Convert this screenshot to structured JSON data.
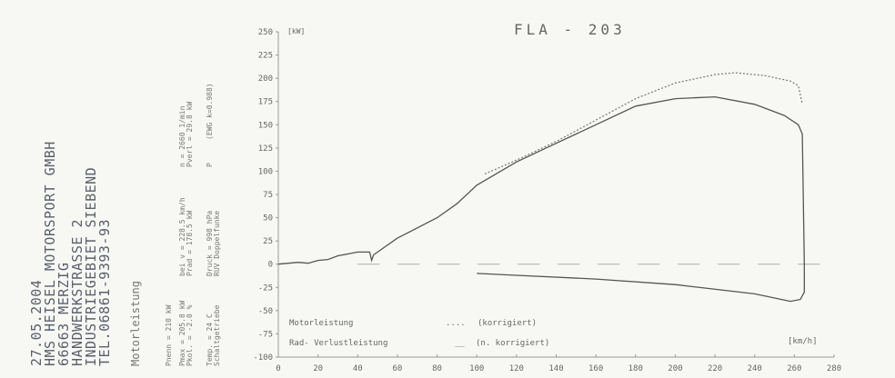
{
  "header": {
    "lines": [
      "27.05.2004",
      "HMS HEISEL MOTORSPORT GMBH",
      "66663 MERZIG",
      "HANDWERKSTRASSE 2",
      "INDUSTRIEGEBIET SIEBEND",
      "TEL.06861-9393-93"
    ],
    "section": "Motorleistung"
  },
  "params": {
    "pnenn": "Pnenn = 210 kW",
    "pmax": "Pmax = 205.8 kW",
    "pkol": "Pkol. = -2.0 %",
    "bei_v": "bei v = 228.5 km/h",
    "prad": "Prad = 178.5 kW",
    "n": "n = 2660 1/min",
    "pverl": "Pverl = 29.8 kW",
    "temp": "Temp. = 24 C",
    "getriebe": "Schaltgetriebe",
    "druck": "Druck = 998 hPa",
    "ruv": "RUV Doppelfunke",
    "p": "P",
    "ewg": "(EWG k=0.988)"
  },
  "chart_data": {
    "type": "line",
    "title": "FLA - 203",
    "ylabel": "[kW]",
    "xlabel": "[km/h]",
    "xlim": [
      0,
      280
    ],
    "ylim": [
      -100,
      250
    ],
    "xticks": [
      0,
      20,
      40,
      60,
      80,
      100,
      120,
      140,
      160,
      180,
      200,
      220,
      240,
      260,
      280
    ],
    "yticks": [
      250,
      225,
      200,
      175,
      150,
      125,
      100,
      75,
      50,
      25,
      0,
      -25,
      -50,
      -75,
      -100
    ],
    "grid": false,
    "legend": {
      "placement": "bottom-left",
      "entries": [
        {
          "label": "Motorleistung",
          "marker": "....",
          "note": "(korrigiert)"
        },
        {
          "label": "Rad- Verlustleistung",
          "marker": "__",
          "note": "(n. korrigiert)"
        }
      ]
    },
    "series": [
      {
        "name": "Motorleistung",
        "style": "dotted",
        "x": [
          104,
          120,
          140,
          160,
          180,
          200,
          220,
          230,
          245,
          258,
          262,
          264
        ],
        "y": [
          97,
          112,
          132,
          155,
          178,
          195,
          204,
          206,
          203,
          197,
          192,
          172
        ]
      },
      {
        "name": "Rad- Verlustleistung",
        "style": "solid",
        "x": [
          0,
          10,
          15,
          20,
          25,
          30,
          35,
          40,
          46,
          47,
          48,
          60,
          80,
          90,
          100,
          120,
          140,
          160,
          180,
          200,
          220,
          240,
          255,
          262,
          264,
          265,
          265,
          263,
          258,
          240,
          200,
          160,
          120,
          100
        ],
        "y": [
          0,
          2,
          1,
          4,
          5,
          9,
          11,
          13,
          13,
          4,
          10,
          28,
          50,
          65,
          85,
          110,
          130,
          150,
          170,
          178,
          180,
          172,
          160,
          150,
          140,
          0,
          -30,
          -38,
          -40,
          -32,
          -22,
          -16,
          -12,
          -10
        ]
      }
    ],
    "zero_line": {
      "style": "dashed",
      "x": [
        40,
        280
      ],
      "y": 0
    }
  }
}
